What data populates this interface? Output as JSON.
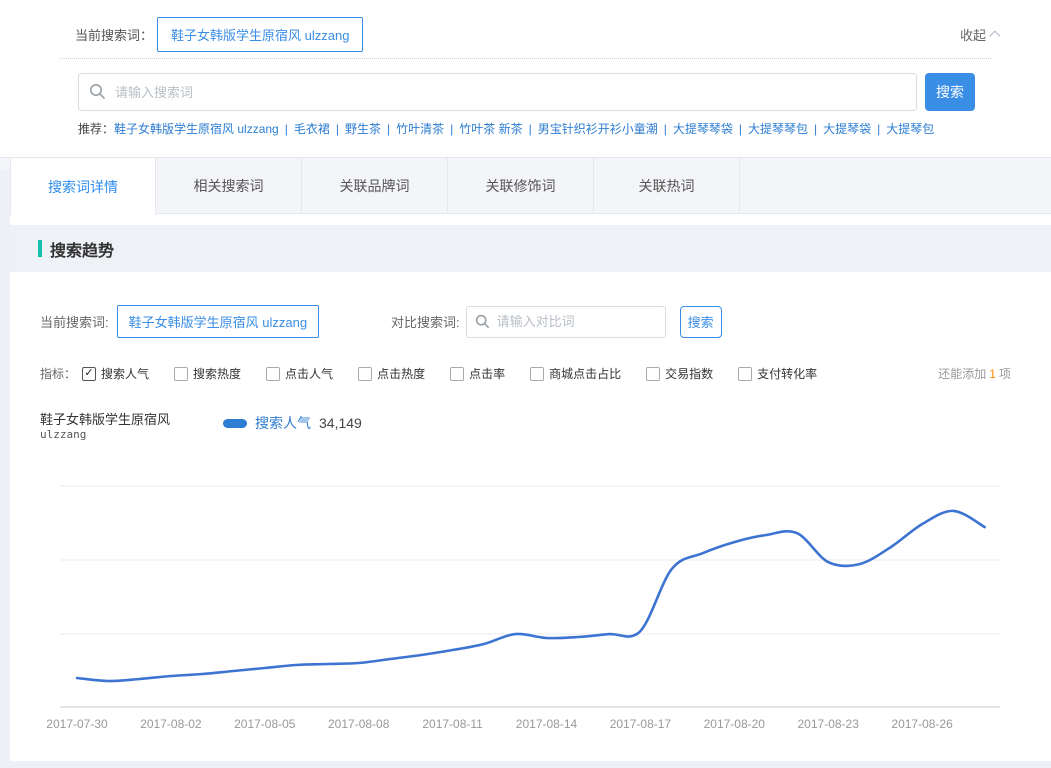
{
  "colors": {
    "accent_blue": "#3a8ee6",
    "link_blue": "#2d7dd2",
    "tab_active_blue": "#2d8cf0",
    "teal": "#17bfb0",
    "orange": "#ff8a00",
    "line_blue": "#3d74d1",
    "grid_gray": "#ebebeb",
    "axis_gray": "#c8c8c8"
  },
  "top_panel": {
    "current_label": "当前搜索词：",
    "current_term": "鞋子女韩版学生原宿风 ulzzang",
    "collapse_label": "收起",
    "collapse_icon": "chevron-up",
    "search_placeholder": "请输入搜索词",
    "search_button": "搜索",
    "recommend_label": "推荐：",
    "recommend_links": [
      "鞋子女韩版学生原宿风 ulzzang",
      "毛衣裙",
      "野生茶",
      "竹叶清茶",
      "竹叶茶 新茶",
      "男宝针织衫开衫小童潮",
      "大提琴琴袋",
      "大提琴琴包",
      "大提琴袋",
      "大提琴包"
    ]
  },
  "tabs": [
    {
      "label": "搜索词详情",
      "active": true
    },
    {
      "label": "相关搜索词",
      "active": false
    },
    {
      "label": "关联品牌词",
      "active": false
    },
    {
      "label": "关联修饰词",
      "active": false
    },
    {
      "label": "关联热词",
      "active": false
    }
  ],
  "section": {
    "title": "搜索趋势"
  },
  "filter_bar": {
    "current_label": "当前搜索词:",
    "current_term": "鞋子女韩版学生原宿风 ulzzang",
    "compare_label": "对比搜索词:",
    "compare_placeholder": "请输入对比词",
    "search_button": "搜索"
  },
  "metrics": {
    "label": "指标：",
    "options": [
      {
        "label": "搜索人气",
        "checked": true
      },
      {
        "label": "搜索热度",
        "checked": false
      },
      {
        "label": "点击人气",
        "checked": false
      },
      {
        "label": "点击热度",
        "checked": false
      },
      {
        "label": "点击率",
        "checked": false
      },
      {
        "label": "商城点击占比",
        "checked": false
      },
      {
        "label": "交易指数",
        "checked": false
      },
      {
        "label": "支付转化率",
        "checked": false
      }
    ],
    "remain_prefix": "还能添加",
    "remain_count": "1",
    "remain_suffix": "项"
  },
  "legend": {
    "term_line1": "鞋子女韩版学生原宿风",
    "term_line2": "ulzzang",
    "series_label": "搜索人气",
    "series_value": "34,149"
  },
  "chart_data": {
    "type": "line",
    "title": "搜索趋势",
    "ylabel": "搜索人气",
    "xlabel": "",
    "x": [
      "2017-07-30",
      "2017-07-31",
      "2017-08-01",
      "2017-08-02",
      "2017-08-03",
      "2017-08-04",
      "2017-08-05",
      "2017-08-06",
      "2017-08-07",
      "2017-08-08",
      "2017-08-09",
      "2017-08-10",
      "2017-08-11",
      "2017-08-12",
      "2017-08-13",
      "2017-08-14",
      "2017-08-15",
      "2017-08-16",
      "2017-08-17",
      "2017-08-18",
      "2017-08-19",
      "2017-08-20",
      "2017-08-21",
      "2017-08-22",
      "2017-08-23",
      "2017-08-24",
      "2017-08-25",
      "2017-08-26",
      "2017-08-27",
      "2017-08-28"
    ],
    "x_tick_labels": [
      "2017-07-30",
      "2017-08-02",
      "2017-08-05",
      "2017-08-08",
      "2017-08-11",
      "2017-08-14",
      "2017-08-17",
      "2017-08-20",
      "2017-08-23",
      "2017-08-26"
    ],
    "series": [
      {
        "name": "搜索人气",
        "values": [
          5050,
          4520,
          4870,
          5390,
          5740,
          6260,
          6790,
          7310,
          7480,
          7660,
          8350,
          9050,
          9920,
          10960,
          12700,
          12010,
          12180,
          12700,
          13220,
          24010,
          26800,
          28710,
          29930,
          30280,
          25230,
          24880,
          27840,
          31840,
          34149,
          31320
        ]
      }
    ],
    "ylim": [
      0,
      43700
    ],
    "grid": "horizontal",
    "legend_position": "top-left",
    "smooth": true
  }
}
